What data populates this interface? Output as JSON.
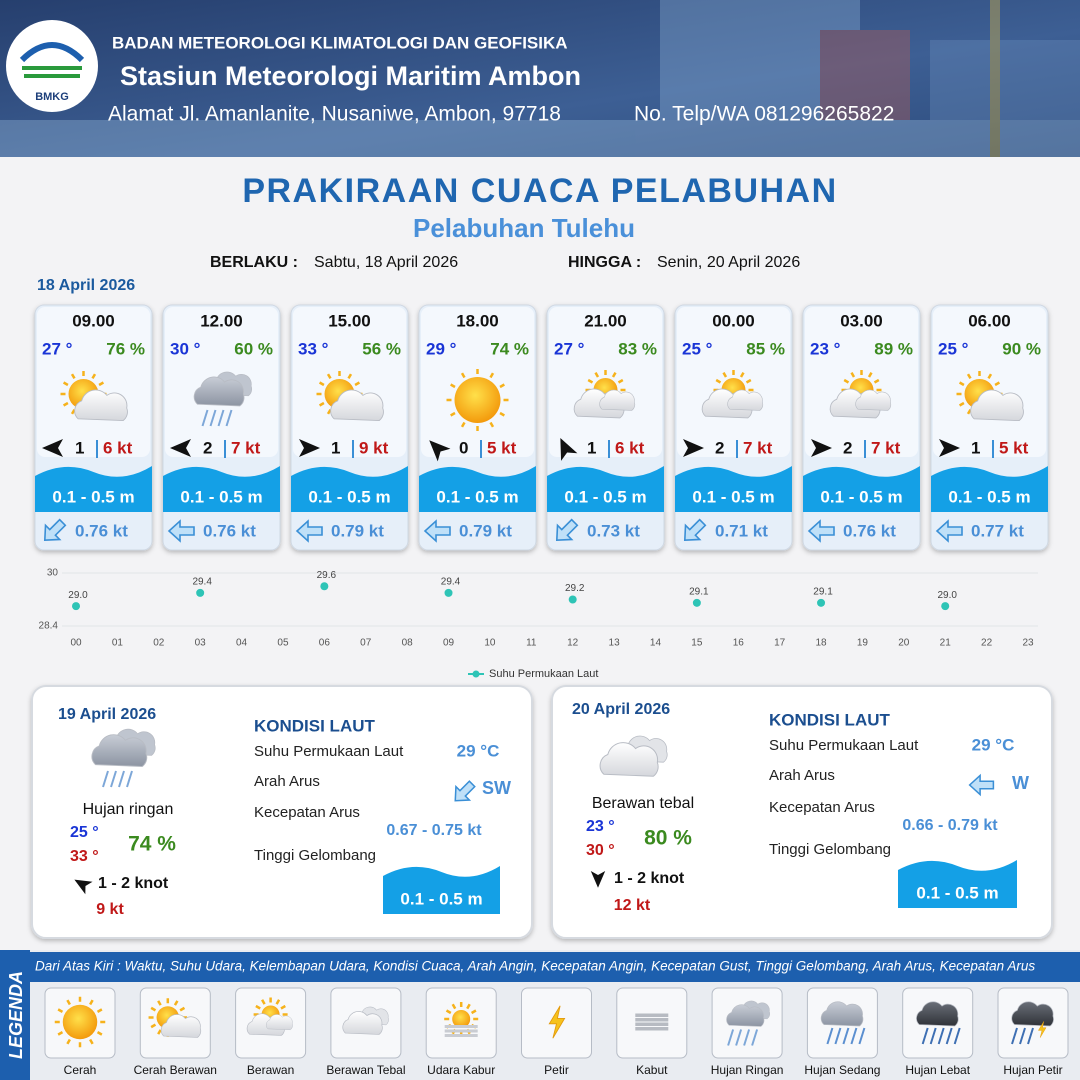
{
  "header": {
    "logo_text": "BMKG",
    "agency": "BADAN METEOROLOGI KLIMATOLOGI DAN GEOFISIKA",
    "station": "Stasiun Meteorologi Maritim Ambon",
    "address": "Alamat Jl. Amanlanite, Nusaniwe, Ambon, 97718",
    "phone": "No. Telp/WA  081296265822"
  },
  "title": "PRAKIRAAN CUACA PELABUHAN",
  "subtitle": "Pelabuhan Tulehu",
  "validity": {
    "from_label": "BERLAKU :",
    "from": "Sabtu, 18 April 2026",
    "to_label": "HINGGA :",
    "to": "Senin, 20 April 2026"
  },
  "day1": {
    "date": "18 April 2026",
    "cards": [
      {
        "time": "09.00",
        "temp": "27 °",
        "humidity": "76 %",
        "wind": "1",
        "gust": "6 kt",
        "wave": "0.1 - 0.5 m",
        "current": "0.76 kt"
      },
      {
        "time": "12.00",
        "temp": "30 °",
        "humidity": "60 %",
        "wind": "2",
        "gust": "7 kt",
        "wave": "0.1 - 0.5 m",
        "current": "0.76 kt"
      },
      {
        "time": "15.00",
        "temp": "33 °",
        "humidity": "56 %",
        "wind": "1",
        "gust": "9 kt",
        "wave": "0.1 - 0.5 m",
        "current": "0.79 kt"
      },
      {
        "time": "18.00",
        "temp": "29 °",
        "humidity": "74 %",
        "wind": "0",
        "gust": "5 kt",
        "wave": "0.1 - 0.5 m",
        "current": "0.79 kt"
      },
      {
        "time": "21.00",
        "temp": "27 °",
        "humidity": "83 %",
        "wind": "1",
        "gust": "6 kt",
        "wave": "0.1 - 0.5 m",
        "current": "0.73 kt"
      },
      {
        "time": "00.00",
        "temp": "25 °",
        "humidity": "85 %",
        "wind": "2",
        "gust": "7 kt",
        "wave": "0.1 - 0.5 m",
        "current": "0.71 kt"
      },
      {
        "time": "03.00",
        "temp": "23 °",
        "humidity": "89 %",
        "wind": "2",
        "gust": "7 kt",
        "wave": "0.1 - 0.5 m",
        "current": "0.76 kt"
      },
      {
        "time": "06.00",
        "temp": "25 °",
        "humidity": "90 %",
        "wind": "1",
        "gust": "5 kt",
        "wave": "0.1 - 0.5 m",
        "current": "0.77 kt"
      }
    ]
  },
  "chart_data": {
    "type": "scatter",
    "x": [
      0,
      3,
      6,
      9,
      12,
      15,
      18,
      21
    ],
    "values": [
      29.0,
      29.4,
      29.6,
      29.4,
      29.2,
      29.1,
      29.1,
      29.0
    ],
    "value_labels": [
      "29.0",
      "29.4",
      "29.6",
      "29.4",
      "29.2",
      "29.1",
      "29.1",
      "29.0"
    ],
    "name": "Suhu Permukaan Laut",
    "color": "#2ec4b6",
    "ylim": [
      28.4,
      30
    ],
    "yticks": [
      28.4,
      30
    ],
    "xlim": [
      0,
      23
    ],
    "xticks": [
      {
        "value": 0,
        "label": "00"
      },
      {
        "value": 1,
        "label": "01"
      },
      {
        "value": 2,
        "label": "02"
      },
      {
        "value": 3,
        "label": "03"
      },
      {
        "value": 4,
        "label": "04"
      },
      {
        "value": 5,
        "label": "05"
      },
      {
        "value": 6,
        "label": "06"
      },
      {
        "value": 7,
        "label": "07"
      },
      {
        "value": 8,
        "label": "08"
      },
      {
        "value": 9,
        "label": "09"
      },
      10,
      11,
      12,
      13,
      14,
      15,
      16,
      17,
      18,
      19,
      20,
      21,
      22,
      23
    ],
    "grid": true
  },
  "panels": [
    {
      "date": "19 April 2026",
      "condition": "Hujan ringan",
      "temp_min": "25 °",
      "temp_max": "33 °",
      "humidity": "74 %",
      "wind": "1  - 2 knot",
      "gust": "9 kt",
      "sea_title": "KONDISI LAUT",
      "sst_label": "Suhu Permukaan Laut",
      "dir_label": "Arah Arus",
      "speed_label": "Kecepatan Arus",
      "wave_label": "Tinggi Gelombang",
      "sst": "29 °C",
      "direction": "SW",
      "speed": "0.67 - 0.75 kt",
      "wave": "0.1 - 0.5 m"
    },
    {
      "date": "20 April 2026",
      "condition": "Berawan tebal",
      "temp_min": "23 °",
      "temp_max": "30 °",
      "humidity": "80 %",
      "wind": "1 - 2 knot",
      "gust": "12 kt",
      "sea_title": "KONDISI LAUT",
      "sst_label": "Suhu Permukaan Laut",
      "dir_label": "Arah Arus",
      "speed_label": "Kecepatan Arus",
      "wave_label": "Tinggi Gelombang",
      "sst": "29 °C",
      "direction": "W",
      "speed": "0.66 - 0.79 kt",
      "wave": "0.1 - 0.5 m"
    }
  ],
  "legend": {
    "title": "LEGENDA",
    "description": "Dari Atas Kiri : Waktu, Suhu Udara, Kelembapan Udara, Kondisi Cuaca, Arah Angin, Kecepatan Angin, Kecepatan Gust, Tinggi Gelombang, Arah Arus, Kecepatan Arus",
    "items": [
      "Cerah",
      "Cerah Berawan",
      "Berawan",
      "Berawan Tebal",
      "Udara Kabur",
      "Petir",
      "Kabut",
      "Hujan Ringan",
      "Hujan Sedang",
      "Hujan Lebat",
      "Hujan Petir"
    ]
  }
}
